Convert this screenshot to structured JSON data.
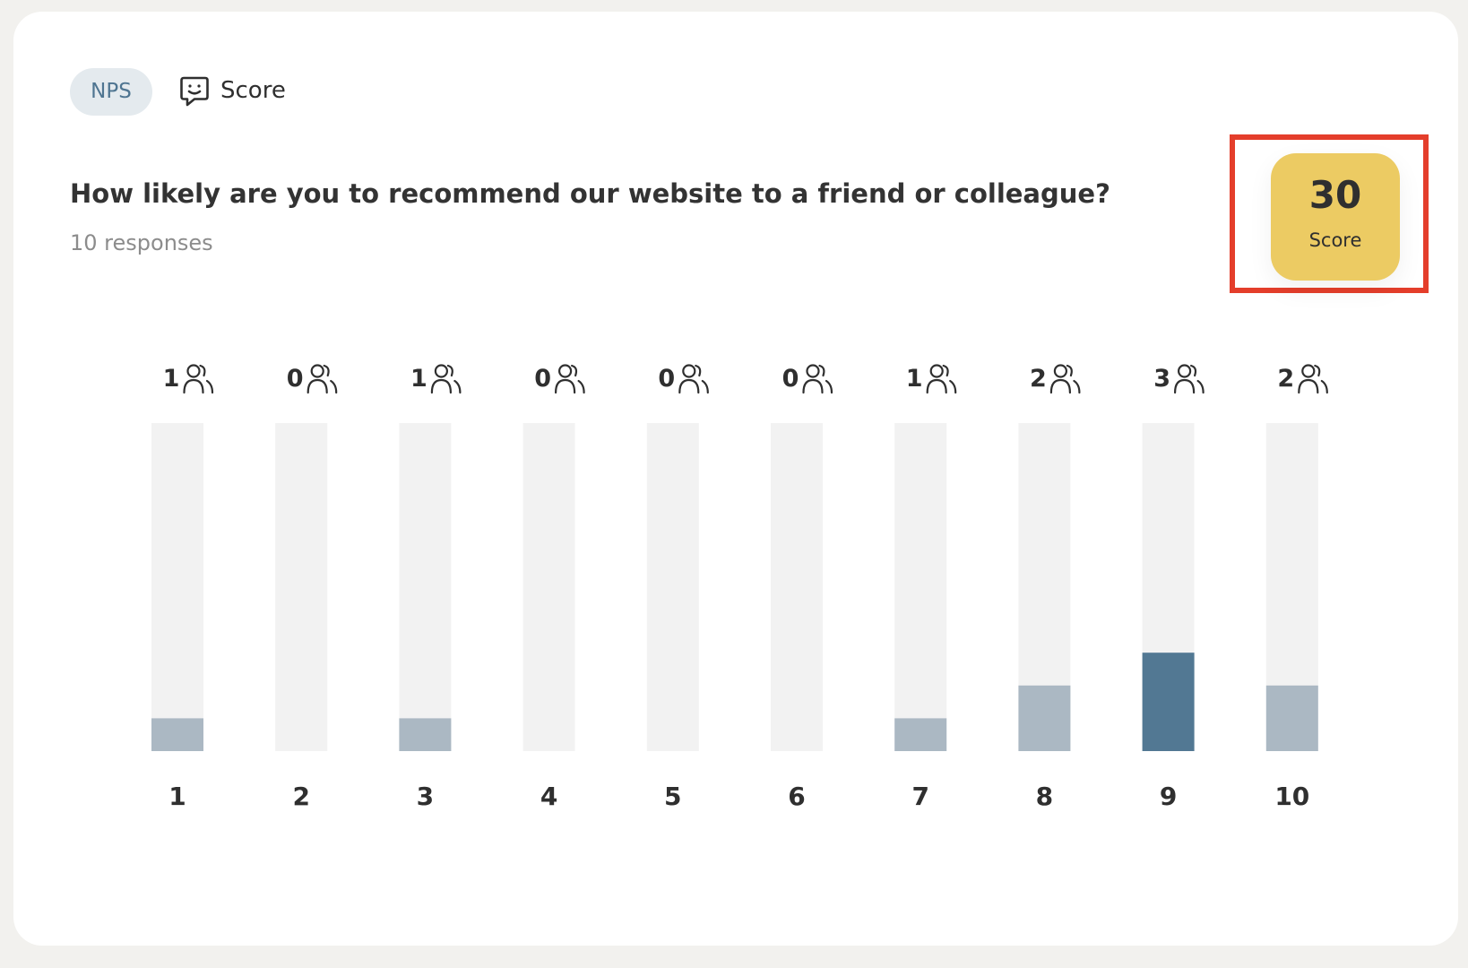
{
  "header": {
    "badge_label": "NPS",
    "type_label": "Score",
    "type_icon": "chat-smile-icon"
  },
  "question": {
    "text": "How likely are you to recommend our website to a friend or colleague?",
    "responses_label": "10 responses"
  },
  "score": {
    "value": "30",
    "label": "Score",
    "color": "#eccb63",
    "highlight_color": "#e43e2b"
  },
  "chart_data": {
    "type": "bar",
    "categories": [
      "1",
      "2",
      "3",
      "4",
      "5",
      "6",
      "7",
      "8",
      "9",
      "10"
    ],
    "values": [
      1,
      0,
      1,
      0,
      0,
      0,
      1,
      2,
      3,
      2
    ],
    "ylim": [
      0,
      10
    ],
    "count_icon": "users-icon",
    "colors": {
      "track": "#f2f2f2",
      "bar": "#abb8c3",
      "highlight_bar": "#527893",
      "label": "#2f2f2f"
    },
    "highlighted_category": "9"
  }
}
